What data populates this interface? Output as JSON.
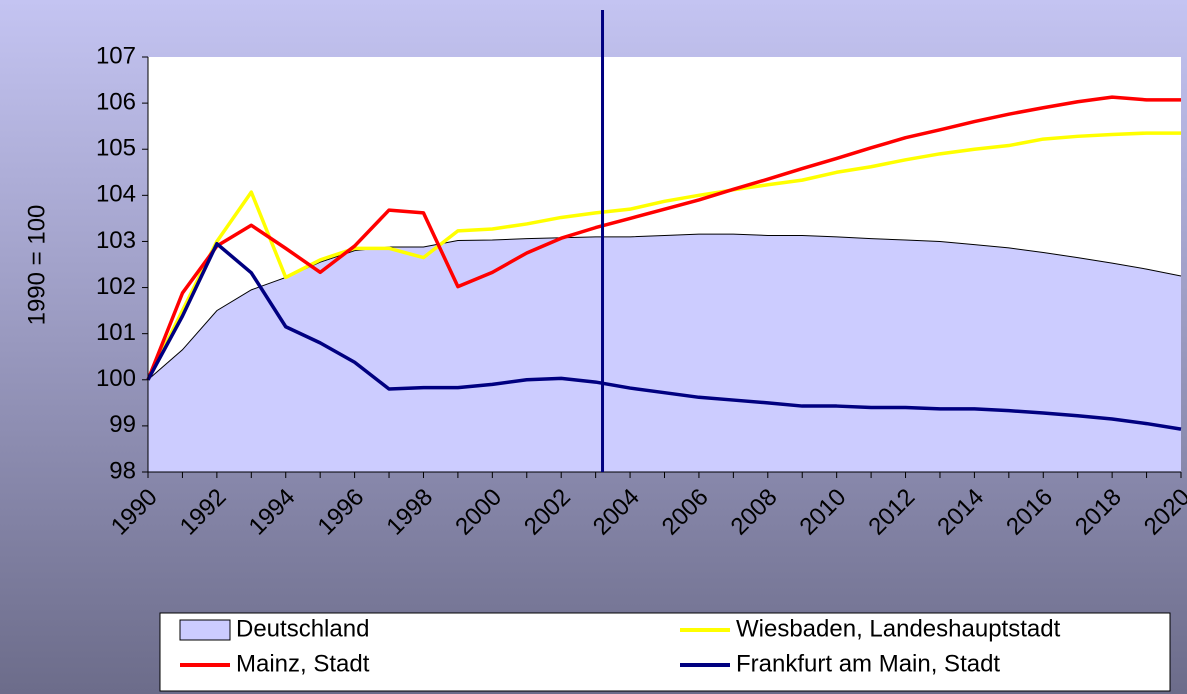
{
  "chart_data": {
    "type": "line",
    "ylabel": "1990 = 100",
    "categories": [
      "1990",
      null,
      "1992",
      null,
      "1994",
      null,
      "1996",
      null,
      "1998",
      null,
      "2000",
      null,
      "2002",
      null,
      "2004",
      null,
      "2006",
      null,
      "2008",
      null,
      "2010",
      null,
      "2012",
      null,
      "2014",
      null,
      "2016",
      null,
      "2018",
      null,
      "2020"
    ],
    "ylim": [
      98,
      107
    ],
    "yticks": [
      98,
      99,
      100,
      101,
      102,
      103,
      104,
      105,
      106,
      107
    ],
    "vline": 2003.2,
    "series": [
      {
        "name": "Deutschland",
        "kind": "area",
        "color": "#ccccff",
        "values": [
          100,
          100.65,
          101.5,
          101.95,
          102.22,
          102.55,
          102.8,
          102.88,
          102.88,
          103.02,
          103.03,
          103.06,
          103.08,
          103.1,
          103.1,
          103.13,
          103.16,
          103.16,
          103.13,
          103.13,
          103.1,
          103.06,
          103.03,
          103.0,
          102.93,
          102.86,
          102.76,
          102.65,
          102.53,
          102.4,
          102.25
        ]
      },
      {
        "name": "Wiesbaden, Landeshauptstadt",
        "kind": "line",
        "color": "#ffff00",
        "values": [
          100,
          101.5,
          103.0,
          104.07,
          102.22,
          102.6,
          102.85,
          102.85,
          102.65,
          103.23,
          103.27,
          103.38,
          103.52,
          103.62,
          103.7,
          103.87,
          104.0,
          104.12,
          104.23,
          104.33,
          104.5,
          104.62,
          104.77,
          104.9,
          105.0,
          105.08,
          105.22,
          105.28,
          105.32,
          105.35,
          105.35
        ]
      },
      {
        "name": "Mainz, Stadt",
        "kind": "line",
        "color": "#ff0000",
        "values": [
          100,
          101.88,
          102.9,
          103.35,
          102.85,
          102.33,
          102.9,
          103.68,
          103.62,
          102.02,
          102.33,
          102.75,
          103.07,
          103.3,
          103.5,
          103.7,
          103.9,
          104.13,
          104.35,
          104.58,
          104.8,
          105.03,
          105.25,
          105.42,
          105.6,
          105.76,
          105.9,
          106.03,
          106.13,
          106.07,
          106.07
        ]
      },
      {
        "name": "Frankfurt am Main, Stadt",
        "kind": "line",
        "color": "#000080",
        "values": [
          100,
          101.38,
          102.95,
          102.32,
          101.15,
          100.8,
          100.38,
          99.8,
          99.83,
          99.83,
          99.9,
          100.0,
          100.03,
          99.95,
          99.82,
          99.72,
          99.62,
          99.56,
          99.5,
          99.43,
          99.43,
          99.4,
          99.4,
          99.37,
          99.37,
          99.33,
          99.28,
          99.22,
          99.15,
          99.05,
          98.93
        ]
      }
    ]
  }
}
